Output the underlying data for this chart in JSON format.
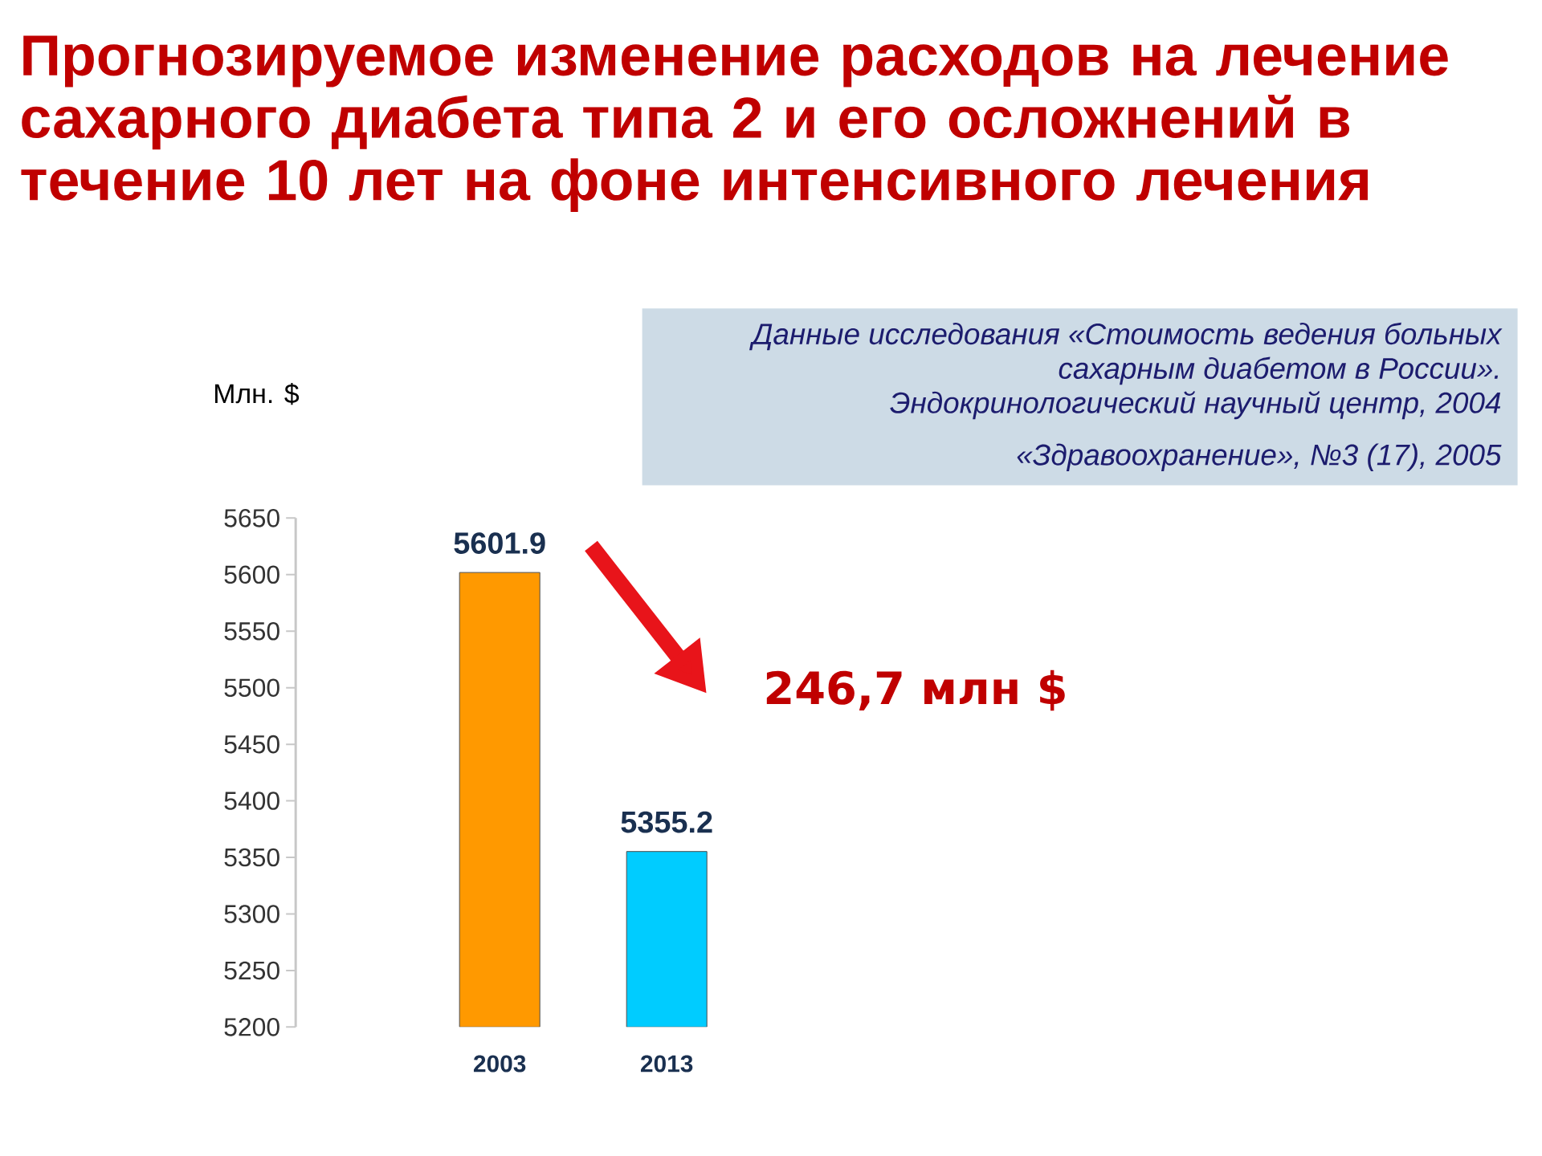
{
  "chart_data": {
    "type": "bar",
    "title": "Прогнозируемое изменение расходов на лечение сахарного диабета типа 2 и его осложнений в течение 10 лет на фоне интенсивного лечения",
    "ylabel": "Млн. $",
    "categories": [
      "2003",
      "2013"
    ],
    "values": [
      5601.9,
      5355.2
    ],
    "colors": [
      "#ff9900",
      "#00ccff"
    ],
    "ylim": [
      5200,
      5650
    ],
    "yticks": [
      5200,
      5250,
      5300,
      5350,
      5400,
      5450,
      5500,
      5550,
      5600,
      5650
    ],
    "data_labels": true,
    "annotations": [
      "Данные исследования «Стоимость ведения больных сахарным диабетом в России».",
      "Эндокринологический научный центр, 2004",
      "«Здравоохранение», №3 (17), 2005",
      "246,7 млн $"
    ]
  }
}
